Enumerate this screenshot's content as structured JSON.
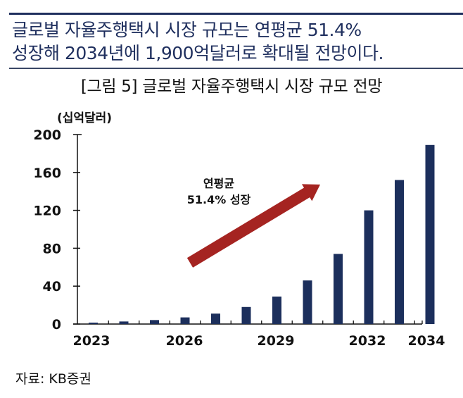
{
  "headline": {
    "line1": "글로벌 자율주행택시 시장 규모는 연평균 51.4%",
    "line2": "성장해 2034년에 1,900억달러로 확대될 전망이다."
  },
  "figure": {
    "title": "[그림 5] 글로벌 자율주행택시 시장 규모 전망"
  },
  "colors": {
    "headline": "#1f2f5e",
    "bar": "#1c2f5c",
    "arrow": "#a52421",
    "axis": "#111111"
  },
  "chart_data": {
    "type": "bar",
    "title": "[그림 5] 글로벌 자율주행택시 시장 규모 전망",
    "ylabel": "(십억달러)",
    "xlabel": "",
    "ylim": [
      0,
      200
    ],
    "yticks": [
      0,
      40,
      80,
      120,
      160,
      200
    ],
    "categories": [
      "2023",
      "2024",
      "2025",
      "2026",
      "2027",
      "2028",
      "2029",
      "2030",
      "2031",
      "2032",
      "2033",
      "2034"
    ],
    "xtick_labels_shown": [
      "2023",
      "2026",
      "2029",
      "2032",
      "2034"
    ],
    "values": [
      1.5,
      2.7,
      4.2,
      7,
      11,
      18,
      29,
      46,
      74,
      120,
      152,
      189
    ],
    "grid": false,
    "legend": null,
    "annotations": [
      {
        "text_line1": "연평균",
        "text_line2": "51.4% 성장",
        "type": "arrow-up-right"
      }
    ]
  },
  "source": {
    "label": "자료: KB증권"
  }
}
